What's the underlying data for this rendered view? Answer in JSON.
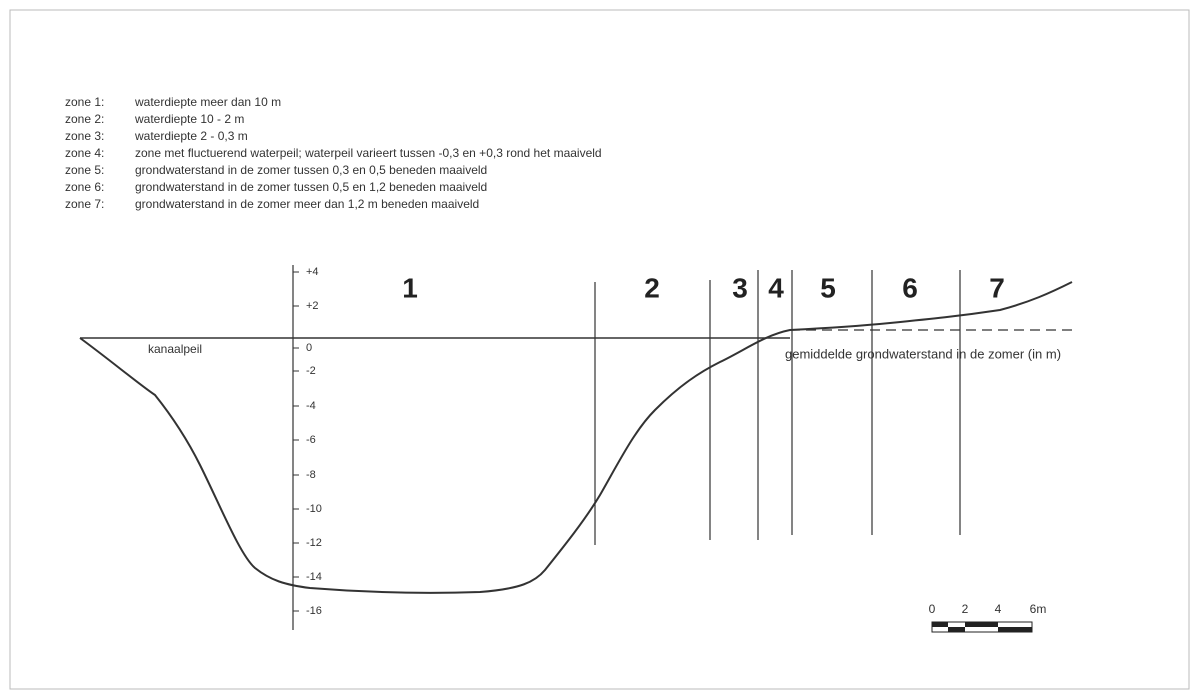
{
  "legend": [
    {
      "zone": "zone 1:",
      "text": "waterdiepte meer dan 10 m"
    },
    {
      "zone": "zone 2:",
      "text": "waterdiepte 10 - 2 m"
    },
    {
      "zone": "zone 3:",
      "text": "waterdiepte 2 - 0,3 m"
    },
    {
      "zone": "zone 4:",
      "text": "zone met fluctuerend waterpeil; waterpeil varieert tussen -0,3 en +0,3 rond het maaiveld"
    },
    {
      "zone": "zone 5:",
      "text": "grondwaterstand in de zomer tussen 0,3 en 0,5 beneden maaiveld"
    },
    {
      "zone": "zone 6:",
      "text": "grondwaterstand in de zomer tussen 0,5 en 1,2 beneden maaiveld"
    },
    {
      "zone": "zone 7:",
      "text": "grondwaterstand in de zomer meer dan 1,2 m beneden maaiveld"
    }
  ],
  "zones": [
    "1",
    "2",
    "3",
    "4",
    "5",
    "6",
    "7"
  ],
  "depth_axis": [
    "+4",
    "+2",
    "0",
    "-2",
    "-4",
    "-6",
    "-8",
    "-10",
    "-12",
    "-14",
    "-16"
  ],
  "labels": {
    "canal_level": "kanaalpeil",
    "groundwater": "gemiddelde grondwaterstand in de zomer (in m)"
  },
  "scale_bar": [
    "0",
    "2",
    "4",
    "6m"
  ]
}
